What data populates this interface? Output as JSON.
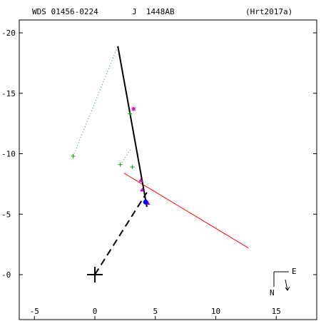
{
  "header": {
    "id": "WDS 01456-0224",
    "disc": "J  1448AB",
    "ref": "(Hrt2017a)"
  },
  "compass": {
    "east_label": "E",
    "north_label": "N"
  },
  "chart_data": {
    "type": "scatter",
    "title": "",
    "xlabel": "",
    "ylabel": "",
    "xlim": [
      -7,
      18.5
    ],
    "ylim": [
      -3.8,
      21.5
    ],
    "x_ticks": [
      -5,
      0,
      5,
      10,
      15
    ],
    "y_ticks": [
      0,
      5,
      10,
      15,
      20
    ],
    "x_tick_labels": [
      "-5",
      "0",
      "5",
      "10",
      "15"
    ],
    "y_tick_labels": [
      "-0",
      "-5",
      "-10",
      "-15",
      "-20"
    ],
    "primary": {
      "x": 0,
      "y": 0
    },
    "orbit_segment": {
      "from": [
        1.9,
        18.9
      ],
      "to": [
        4.3,
        5.6
      ]
    },
    "line_of_nodes": {
      "from": [
        0,
        0
      ],
      "to": [
        4.3,
        6.8
      ]
    },
    "residual_line": {
      "from": [
        2.4,
        8.4
      ],
      "to": [
        12.7,
        2.2
      ]
    },
    "observation_connectors": [
      {
        "from": [
          -1.8,
          9.8
        ],
        "to": [
          1.9,
          18.9
        ]
      },
      {
        "from": [
          2.1,
          9.1
        ],
        "to": [
          3.0,
          10.4
        ]
      }
    ],
    "plus_points": [
      {
        "x": -1.8,
        "y": 9.8
      },
      {
        "x": 2.1,
        "y": 9.1
      },
      {
        "x": 3.1,
        "y": 8.9
      },
      {
        "x": 2.9,
        "y": 13.3
      }
    ],
    "star_points": [
      {
        "x": 3.2,
        "y": 13.7
      }
    ],
    "triangle_points": [
      {
        "x": 3.8,
        "y": 7.8
      },
      {
        "x": 3.9,
        "y": 7.0
      },
      {
        "x": 4.4,
        "y": 5.9
      }
    ],
    "filled_circle_points": [
      {
        "x": 4.2,
        "y": 6.0
      }
    ],
    "colors": {
      "orbit": "#000000",
      "residual": "#ff0000",
      "plus": "#00aa00",
      "star": "#cc00cc",
      "triangle": "#cc00cc",
      "circle": "#0000ff",
      "connector": "#00aa00"
    }
  }
}
